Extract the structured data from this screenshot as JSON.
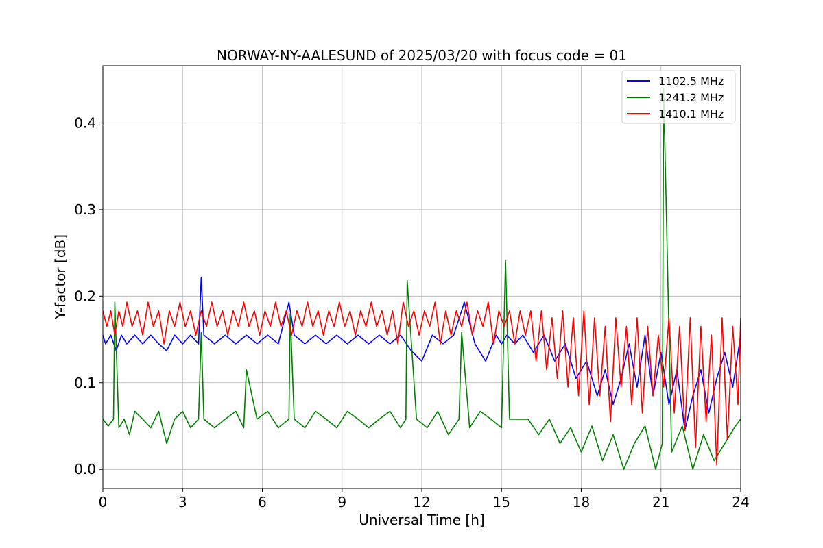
{
  "chart_data": {
    "type": "line",
    "title": "NORWAY-NY-AALESUND of 2025/03/20 with focus code = 01",
    "xlabel": "Universal Time [h]",
    "ylabel": "Y-factor [dB]",
    "xlim": [
      0,
      24
    ],
    "ylim": [
      -0.022,
      0.466
    ],
    "xticks": [
      0,
      3,
      6,
      9,
      12,
      15,
      18,
      21,
      24
    ],
    "xtick_labels": [
      "0",
      "3",
      "6",
      "9",
      "12",
      "15",
      "18",
      "21",
      "24"
    ],
    "yticks": [
      0.0,
      0.1,
      0.2,
      0.3,
      0.4
    ],
    "ytick_labels": [
      "0.0",
      "0.1",
      "0.2",
      "0.3",
      "0.4"
    ],
    "grid": true,
    "legend_position": "top-right",
    "series": [
      {
        "name": "1102.5 MHz",
        "color": "#0000ff",
        "x": [
          0.0,
          0.1,
          0.3,
          0.5,
          0.7,
          0.9,
          1.2,
          1.5,
          1.8,
          2.1,
          2.4,
          2.7,
          3.0,
          3.3,
          3.6,
          3.7,
          3.8,
          4.2,
          4.6,
          5.0,
          5.4,
          5.8,
          6.2,
          6.6,
          7.0,
          7.2,
          7.6,
          8.0,
          8.4,
          8.8,
          9.2,
          9.6,
          10.0,
          10.4,
          10.8,
          11.2,
          11.6,
          12.0,
          12.4,
          12.8,
          13.2,
          13.6,
          14.0,
          14.4,
          14.8,
          15.0,
          15.2,
          15.5,
          15.8,
          16.2,
          16.6,
          17.0,
          17.4,
          17.8,
          18.2,
          18.6,
          18.9,
          19.2,
          19.5,
          19.8,
          20.1,
          20.4,
          20.7,
          21.0,
          21.3,
          21.6,
          21.9,
          22.2,
          22.5,
          22.8,
          23.1,
          23.4,
          23.7,
          24.0
        ],
        "y": [
          0.155,
          0.145,
          0.155,
          0.137,
          0.155,
          0.145,
          0.155,
          0.145,
          0.155,
          0.145,
          0.137,
          0.155,
          0.145,
          0.155,
          0.145,
          0.222,
          0.155,
          0.145,
          0.155,
          0.145,
          0.155,
          0.145,
          0.155,
          0.145,
          0.193,
          0.155,
          0.145,
          0.155,
          0.145,
          0.155,
          0.145,
          0.155,
          0.145,
          0.155,
          0.145,
          0.155,
          0.137,
          0.125,
          0.155,
          0.145,
          0.155,
          0.193,
          0.145,
          0.125,
          0.155,
          0.145,
          0.155,
          0.145,
          0.155,
          0.135,
          0.155,
          0.125,
          0.145,
          0.105,
          0.125,
          0.085,
          0.115,
          0.075,
          0.105,
          0.145,
          0.095,
          0.155,
          0.085,
          0.135,
          0.075,
          0.115,
          0.045,
          0.085,
          0.115,
          0.065,
          0.105,
          0.135,
          0.095,
          0.155
        ]
      },
      {
        "name": "1241.2 MHz",
        "color": "#008000",
        "x": [
          0.0,
          0.2,
          0.4,
          0.45,
          0.6,
          0.8,
          1.0,
          1.2,
          1.5,
          1.8,
          2.1,
          2.4,
          2.7,
          3.0,
          3.3,
          3.6,
          3.7,
          3.8,
          4.2,
          4.6,
          5.0,
          5.3,
          5.4,
          5.8,
          6.2,
          6.6,
          7.0,
          7.05,
          7.2,
          7.6,
          8.0,
          8.4,
          8.8,
          9.2,
          9.6,
          10.0,
          10.4,
          10.8,
          11.2,
          11.4,
          11.45,
          11.8,
          12.2,
          12.6,
          13.0,
          13.4,
          13.5,
          13.8,
          14.2,
          14.6,
          15.0,
          15.15,
          15.3,
          15.6,
          16.0,
          16.4,
          16.8,
          17.2,
          17.6,
          18.0,
          18.4,
          18.8,
          19.2,
          19.6,
          20.0,
          20.4,
          20.8,
          21.05,
          21.1,
          21.4,
          21.8,
          22.2,
          22.6,
          23.0,
          23.4,
          23.8,
          24.0
        ],
        "y": [
          0.058,
          0.05,
          0.058,
          0.193,
          0.048,
          0.058,
          0.04,
          0.067,
          0.058,
          0.048,
          0.067,
          0.03,
          0.058,
          0.067,
          0.048,
          0.058,
          0.158,
          0.058,
          0.048,
          0.058,
          0.067,
          0.048,
          0.115,
          0.058,
          0.067,
          0.048,
          0.058,
          0.18,
          0.058,
          0.048,
          0.067,
          0.058,
          0.048,
          0.067,
          0.058,
          0.048,
          0.058,
          0.067,
          0.048,
          0.058,
          0.218,
          0.058,
          0.048,
          0.067,
          0.04,
          0.058,
          0.158,
          0.048,
          0.067,
          0.058,
          0.048,
          0.241,
          0.058,
          0.058,
          0.058,
          0.04,
          0.058,
          0.03,
          0.048,
          0.02,
          0.05,
          0.01,
          0.04,
          0.0,
          0.03,
          0.05,
          0.0,
          0.03,
          0.44,
          0.02,
          0.05,
          0.0,
          0.04,
          0.01,
          0.03,
          0.05,
          0.058
        ]
      },
      {
        "name": "1410.1 MHz",
        "color": "#ff0000",
        "x": [
          0.0,
          0.15,
          0.3,
          0.45,
          0.6,
          0.75,
          0.9,
          1.1,
          1.3,
          1.5,
          1.7,
          1.9,
          2.1,
          2.3,
          2.5,
          2.7,
          2.9,
          3.1,
          3.3,
          3.5,
          3.7,
          3.9,
          4.1,
          4.3,
          4.5,
          4.7,
          4.9,
          5.1,
          5.3,
          5.5,
          5.7,
          5.9,
          6.1,
          6.3,
          6.5,
          6.7,
          6.9,
          7.1,
          7.3,
          7.5,
          7.7,
          7.9,
          8.1,
          8.3,
          8.5,
          8.7,
          8.9,
          9.1,
          9.3,
          9.5,
          9.7,
          9.9,
          10.1,
          10.3,
          10.5,
          10.7,
          10.9,
          11.1,
          11.3,
          11.5,
          11.7,
          11.9,
          12.1,
          12.3,
          12.5,
          12.7,
          12.9,
          13.1,
          13.3,
          13.5,
          13.7,
          13.9,
          14.1,
          14.3,
          14.5,
          14.7,
          14.9,
          15.1,
          15.3,
          15.5,
          15.7,
          15.9,
          16.1,
          16.3,
          16.5,
          16.7,
          16.9,
          17.1,
          17.3,
          17.5,
          17.7,
          17.9,
          18.1,
          18.3,
          18.5,
          18.7,
          18.9,
          19.1,
          19.3,
          19.5,
          19.7,
          19.9,
          20.1,
          20.3,
          20.5,
          20.7,
          20.9,
          21.1,
          21.3,
          21.5,
          21.7,
          21.9,
          22.1,
          22.3,
          22.5,
          22.7,
          22.9,
          23.1,
          23.3,
          23.5,
          23.7,
          23.9,
          24.0
        ],
        "y": [
          0.183,
          0.165,
          0.183,
          0.155,
          0.183,
          0.165,
          0.193,
          0.165,
          0.183,
          0.155,
          0.193,
          0.165,
          0.183,
          0.145,
          0.183,
          0.165,
          0.193,
          0.165,
          0.183,
          0.155,
          0.183,
          0.165,
          0.193,
          0.165,
          0.183,
          0.155,
          0.183,
          0.165,
          0.193,
          0.165,
          0.183,
          0.155,
          0.183,
          0.165,
          0.193,
          0.165,
          0.183,
          0.155,
          0.183,
          0.165,
          0.193,
          0.165,
          0.183,
          0.155,
          0.183,
          0.165,
          0.193,
          0.165,
          0.183,
          0.155,
          0.183,
          0.165,
          0.193,
          0.165,
          0.183,
          0.155,
          0.183,
          0.145,
          0.193,
          0.165,
          0.183,
          0.155,
          0.183,
          0.165,
          0.193,
          0.145,
          0.183,
          0.155,
          0.183,
          0.165,
          0.193,
          0.155,
          0.183,
          0.165,
          0.193,
          0.145,
          0.183,
          0.165,
          0.183,
          0.145,
          0.183,
          0.155,
          0.183,
          0.125,
          0.183,
          0.115,
          0.175,
          0.105,
          0.183,
          0.095,
          0.175,
          0.085,
          0.183,
          0.075,
          0.175,
          0.085,
          0.165,
          0.055,
          0.175,
          0.095,
          0.165,
          0.075,
          0.175,
          0.065,
          0.165,
          0.085,
          0.155,
          0.095,
          0.175,
          0.065,
          0.165,
          0.045,
          0.175,
          0.025,
          0.165,
          0.055,
          0.155,
          0.005,
          0.175,
          0.035,
          0.165,
          0.075,
          0.175
        ]
      }
    ]
  }
}
